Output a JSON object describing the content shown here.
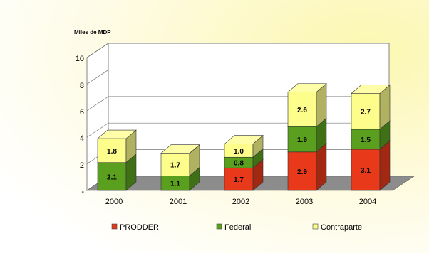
{
  "chart_data": {
    "type": "bar",
    "stacked": true,
    "ylabel": "Miles de MDP",
    "ylim": [
      0,
      10
    ],
    "yticks": [
      0,
      2,
      4,
      6,
      8,
      10
    ],
    "ytick_labels": [
      "-",
      "2",
      "4",
      "6",
      "8",
      "10"
    ],
    "categories": [
      "2000",
      "2001",
      "2002",
      "2003",
      "2004"
    ],
    "series": [
      {
        "name": "PRODDER",
        "color": "#e8391a",
        "values": [
          0,
          0,
          1.7,
          2.9,
          3.1
        ],
        "labels": [
          "",
          "",
          "1.7",
          "2.9",
          "3.1"
        ]
      },
      {
        "name": "Federal",
        "color": "#5aa01e",
        "values": [
          2.1,
          1.1,
          0.8,
          1.9,
          1.5
        ],
        "labels": [
          "2.1",
          "1.1",
          "0.8",
          "1.9",
          "1.5"
        ]
      },
      {
        "name": "Contraparte",
        "color": "#fdfd8c",
        "values": [
          1.8,
          1.7,
          1.0,
          2.6,
          2.7
        ],
        "labels": [
          "1.8",
          "1.7",
          "1.0",
          "2.6",
          "2.7"
        ]
      }
    ],
    "grid": true,
    "legend_position": "bottom",
    "style": "3d"
  }
}
